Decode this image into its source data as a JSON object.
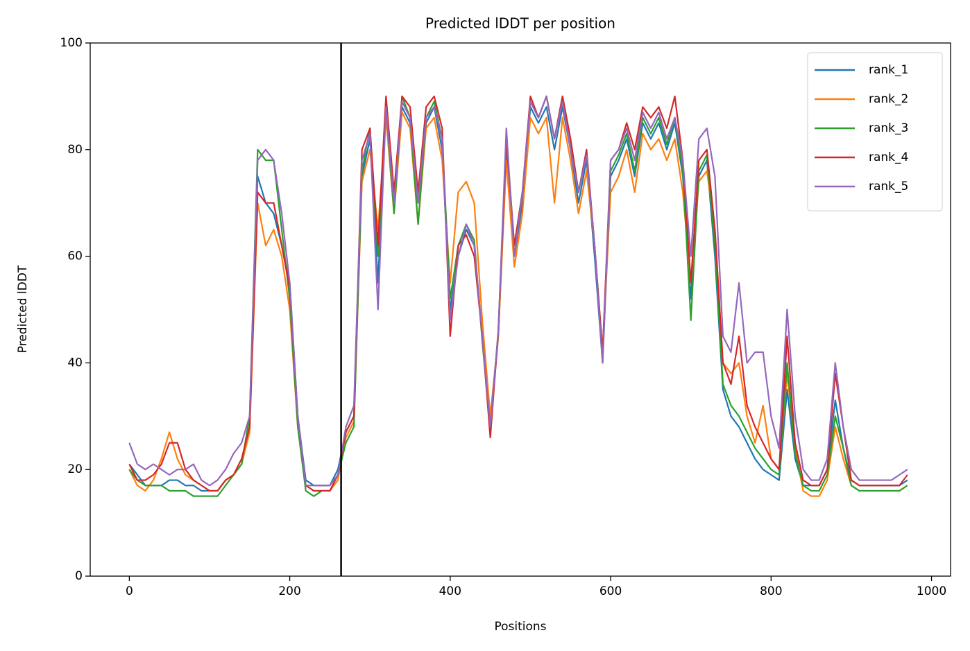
{
  "chart_data": {
    "type": "line",
    "title": "Predicted lDDT per position",
    "x_label": "Positions",
    "y_label": "Predicted lDDT",
    "x": [
      0,
      10,
      20,
      30,
      40,
      50,
      60,
      70,
      80,
      90,
      100,
      110,
      120,
      130,
      140,
      150,
      160,
      170,
      180,
      190,
      200,
      210,
      220,
      230,
      240,
      250,
      260,
      270,
      280,
      290,
      300,
      310,
      320,
      330,
      340,
      350,
      360,
      370,
      380,
      390,
      400,
      410,
      420,
      430,
      440,
      450,
      460,
      470,
      480,
      490,
      500,
      510,
      520,
      530,
      540,
      550,
      560,
      570,
      580,
      590,
      600,
      610,
      620,
      630,
      640,
      650,
      660,
      670,
      680,
      690,
      700,
      710,
      720,
      730,
      740,
      750,
      760,
      770,
      780,
      790,
      800,
      810,
      820,
      830,
      840,
      850,
      860,
      870,
      880,
      890,
      900,
      910,
      920,
      930,
      940,
      950,
      960,
      970
    ],
    "series": [
      {
        "name": "rank_1",
        "color": "#1f77b4",
        "values": [
          21,
          19,
          17,
          17,
          17,
          18,
          18,
          17,
          17,
          16,
          16,
          16,
          18,
          19,
          21,
          28,
          75,
          70,
          68,
          62,
          55,
          30,
          18,
          17,
          17,
          17,
          20,
          27,
          30,
          75,
          82,
          55,
          88,
          70,
          88,
          85,
          70,
          85,
          88,
          80,
          50,
          60,
          65,
          62,
          45,
          28,
          45,
          80,
          60,
          70,
          88,
          85,
          88,
          80,
          88,
          80,
          70,
          78,
          60,
          40,
          75,
          78,
          82,
          75,
          85,
          82,
          85,
          80,
          85,
          75,
          52,
          75,
          78,
          60,
          35,
          30,
          28,
          25,
          22,
          20,
          19,
          18,
          35,
          22,
          17,
          17,
          17,
          20,
          33,
          24,
          18,
          17,
          17,
          17,
          17,
          17,
          17,
          18
        ]
      },
      {
        "name": "rank_2",
        "color": "#ff7f0e",
        "values": [
          20,
          17,
          16,
          18,
          22,
          27,
          22,
          19,
          18,
          17,
          16,
          16,
          18,
          19,
          21,
          27,
          70,
          62,
          65,
          60,
          50,
          28,
          17,
          16,
          16,
          16,
          18,
          26,
          29,
          74,
          80,
          65,
          86,
          68,
          87,
          84,
          66,
          84,
          86,
          78,
          55,
          72,
          74,
          70,
          48,
          30,
          45,
          78,
          58,
          68,
          86,
          83,
          86,
          70,
          86,
          78,
          68,
          76,
          62,
          42,
          72,
          75,
          80,
          72,
          83,
          80,
          82,
          78,
          82,
          72,
          55,
          74,
          76,
          65,
          40,
          38,
          40,
          30,
          25,
          32,
          22,
          20,
          38,
          24,
          16,
          15,
          15,
          18,
          28,
          22,
          17,
          16,
          16,
          16,
          16,
          16,
          16,
          17
        ]
      },
      {
        "name": "rank_3",
        "color": "#2ca02c",
        "values": [
          20,
          18,
          17,
          17,
          17,
          16,
          16,
          16,
          15,
          15,
          15,
          15,
          17,
          19,
          21,
          30,
          80,
          78,
          78,
          65,
          52,
          28,
          16,
          15,
          16,
          16,
          19,
          25,
          28,
          76,
          84,
          60,
          88,
          68,
          90,
          86,
          66,
          86,
          89,
          82,
          52,
          62,
          66,
          63,
          44,
          28,
          46,
          82,
          62,
          72,
          89,
          86,
          90,
          82,
          90,
          82,
          72,
          79,
          62,
          42,
          76,
          79,
          83,
          76,
          86,
          83,
          86,
          81,
          86,
          76,
          48,
          76,
          79,
          62,
          36,
          32,
          30,
          27,
          24,
          22,
          20,
          19,
          40,
          23,
          17,
          16,
          16,
          19,
          30,
          24,
          17,
          16,
          16,
          16,
          16,
          16,
          16,
          17
        ]
      },
      {
        "name": "rank_4",
        "color": "#d62728",
        "values": [
          21,
          18,
          18,
          19,
          21,
          25,
          25,
          20,
          18,
          17,
          16,
          16,
          18,
          19,
          22,
          28,
          72,
          70,
          70,
          62,
          54,
          30,
          17,
          16,
          16,
          16,
          19,
          27,
          30,
          80,
          84,
          62,
          90,
          72,
          90,
          88,
          72,
          88,
          90,
          84,
          45,
          62,
          64,
          60,
          45,
          26,
          46,
          82,
          62,
          72,
          90,
          86,
          90,
          82,
          90,
          82,
          72,
          80,
          62,
          42,
          78,
          80,
          85,
          80,
          88,
          86,
          88,
          84,
          90,
          78,
          55,
          78,
          80,
          65,
          40,
          36,
          45,
          32,
          28,
          25,
          22,
          20,
          45,
          25,
          18,
          17,
          17,
          20,
          38,
          28,
          18,
          17,
          17,
          17,
          17,
          17,
          17,
          19
        ]
      },
      {
        "name": "rank_5",
        "color": "#9467bd",
        "values": [
          25,
          21,
          20,
          21,
          20,
          19,
          20,
          20,
          21,
          18,
          17,
          18,
          20,
          23,
          25,
          30,
          78,
          80,
          78,
          68,
          55,
          30,
          17,
          17,
          17,
          17,
          19,
          28,
          32,
          78,
          83,
          50,
          88,
          70,
          89,
          86,
          70,
          86,
          88,
          82,
          48,
          60,
          66,
          62,
          45,
          28,
          46,
          84,
          60,
          72,
          89,
          86,
          90,
          82,
          89,
          80,
          72,
          79,
          62,
          40,
          78,
          80,
          84,
          78,
          87,
          84,
          87,
          82,
          86,
          78,
          60,
          82,
          84,
          75,
          45,
          42,
          55,
          40,
          42,
          42,
          30,
          24,
          50,
          30,
          20,
          18,
          18,
          22,
          40,
          28,
          20,
          18,
          18,
          18,
          18,
          18,
          19,
          20
        ]
      }
    ],
    "vline": 264,
    "vline_color": "#000000",
    "xlim": [
      -48.75,
      1023.75
    ],
    "ylim": [
      0,
      100
    ],
    "xticks": [
      0,
      200,
      400,
      600,
      800,
      1000
    ],
    "yticks": [
      0,
      20,
      40,
      60,
      80,
      100
    ],
    "legend": "upper right",
    "grid": false
  }
}
